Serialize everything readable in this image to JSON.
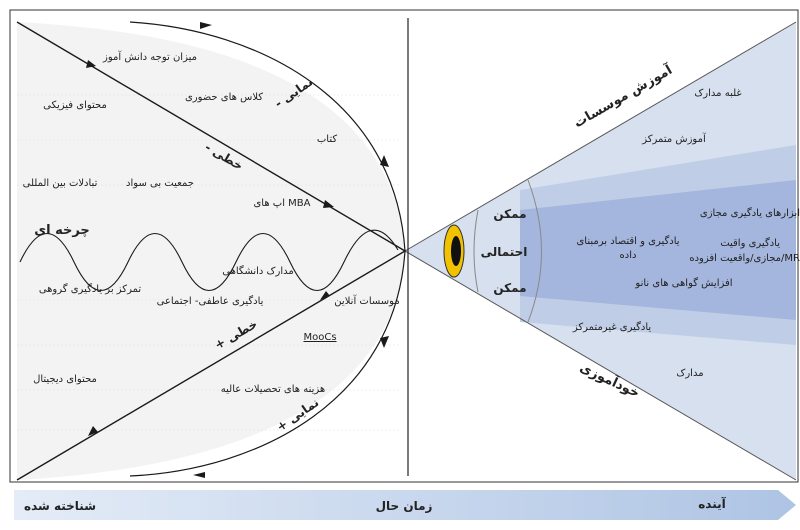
{
  "past_zone": {
    "items": {
      "student_attention": "میزان توجه دانش آموز",
      "physical_content": "محتوای فیزیکی",
      "in_person_classes": "کلاس های حضوری",
      "book": "کتاب",
      "international_exchange": "تبادلات بین المللی",
      "illiterate_population": "جمعیت بی سواد",
      "mba_app": "اپ های MBA",
      "university_degrees": "مدارک دانشگاهی",
      "group_learning": "تمرکز بر یادگیری گروهی",
      "social_emotional": "یادگیری عاطفی- اجتماعی",
      "online_institutes": "موسسات آنلاین",
      "moocs": "MooCs",
      "digital_content": "محتوای دیجیتال",
      "higher_ed_costs": "هزینه های تحصیلات عالیه"
    },
    "trend_labels": {
      "exp_minus": "- نمایی",
      "linear_minus": "- خطی",
      "cyclic": "چرخه ای",
      "linear_plus": "+ خطی",
      "exp_plus": "+ نمایی"
    }
  },
  "future_zone": {
    "cone_labels": {
      "possible_top": "ممکن",
      "probable": "احتمالی",
      "possible_bottom": "ممکن"
    },
    "items": {
      "institutional_education": "آموزش موسسات",
      "degree_dominance": "غلبه مدارک",
      "centralized_education": "آموزش متمرکز",
      "virtual_learning_tools": "ابزارهای یادگیری مجازی",
      "learning_data_economy_line1": "یادگیری و اقتصاد برمبنای",
      "learning_data_economy_line2": "داده",
      "vr_learning_line1": "یادگیری واقیت",
      "vr_learning_line2": "مجازی/واقعیت افزوده/MR",
      "nano_certificates": "افزایش گواهی های نانو",
      "decentralized_learning": "یادگیری غیرمتمرکز",
      "degrees": "مدارک",
      "self_education": "خودآموزی"
    }
  },
  "timeline": {
    "known": "شناخته شده",
    "present": "زمان حال",
    "future": "آینده"
  },
  "colors": {
    "cone_light": "#d7e0ef",
    "cone_mid": "#bfcde6",
    "cone_dark": "#9fb2da",
    "past_fill": "#f3f3f3",
    "arrow_bar": "#c9d8ee",
    "eye_yellow": "#f2c200",
    "line": "#1a1a1a"
  }
}
